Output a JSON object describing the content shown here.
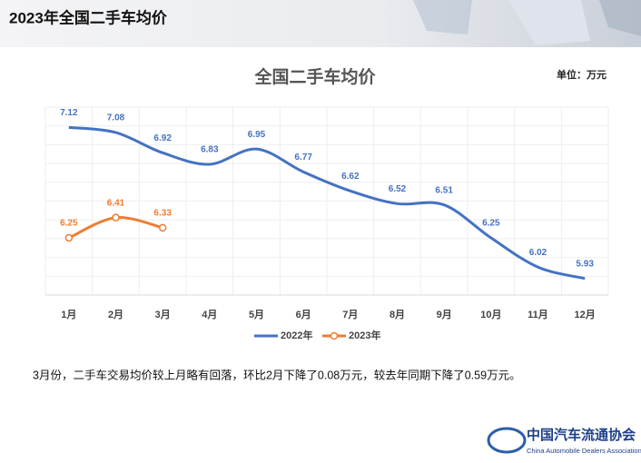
{
  "header": {
    "title": "2023年全国二手车均价"
  },
  "chart_data": {
    "type": "line",
    "title": "全国二手车均价",
    "unit": "单位：万元",
    "categories": [
      "1月",
      "2月",
      "3月",
      "4月",
      "5月",
      "6月",
      "7月",
      "8月",
      "9月",
      "10月",
      "11月",
      "12月"
    ],
    "series": [
      {
        "name": "2022年",
        "color": "#4472c4",
        "values": [
          7.12,
          7.08,
          6.92,
          6.83,
          6.95,
          6.77,
          6.62,
          6.52,
          6.51,
          6.25,
          6.02,
          5.93
        ]
      },
      {
        "name": "2023年",
        "color": "#ed7d31",
        "marker": true,
        "values": [
          6.25,
          6.41,
          6.33,
          null,
          null,
          null,
          null,
          null,
          null,
          null,
          null,
          null
        ]
      }
    ],
    "ylim": [
      5.8,
      7.28
    ]
  },
  "caption": "3月份，二手车交易均价较上月略有回落，环比2月下降了0.08万元，较去年同期下降了0.59万元。",
  "logo": {
    "name": "中国汽车流通协会",
    "english": "China Automobile Dealers Association"
  }
}
